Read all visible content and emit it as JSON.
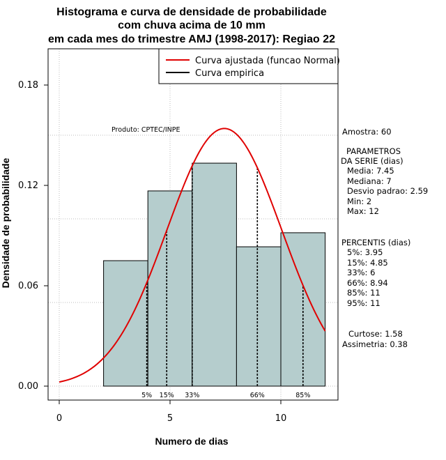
{
  "chart_data": {
    "type": "bar",
    "title": [
      "Histograma e curva de densidade de probabilidade",
      "com chuva acima de 10 mm",
      "em cada mes do trimestre AMJ (1998-2017): Regiao 22"
    ],
    "xlabel": "Numero de dias",
    "ylabel": "Densidade de probabilidade",
    "xlim": [
      -1,
      12.5
    ],
    "ylim": [
      -0.008,
      0.2
    ],
    "x_ticks": [
      0,
      5,
      10
    ],
    "y_ticks": [
      0.0,
      0.06,
      0.12,
      0.18
    ],
    "y_tick_labels": [
      "0.00",
      "0.06",
      "0.12",
      "0.18"
    ],
    "bins": [
      {
        "from": 2,
        "to": 4,
        "value": 0.075
      },
      {
        "from": 4,
        "to": 6,
        "value": 0.1167
      },
      {
        "from": 6,
        "to": 8,
        "value": 0.1333
      },
      {
        "from": 8,
        "to": 10,
        "value": 0.0833
      },
      {
        "from": 10,
        "to": 12,
        "value": 0.0917
      }
    ],
    "bar_color": "#b5cdcd",
    "grid": true,
    "fitted_curve": {
      "name": "Curva ajustada (funcao Normal)",
      "color": "#e00000",
      "mean": 7.45,
      "sd": 2.59,
      "x_from": 0,
      "x_to": 12
    },
    "empirical_curve": {
      "name": "Curva empirica",
      "color": "#000000"
    },
    "legend": "top-right",
    "percentile_lines": [
      {
        "label": "5%",
        "x": 3.95
      },
      {
        "label": "15%",
        "x": 4.85
      },
      {
        "label": "33%",
        "x": 6
      },
      {
        "label": "66%",
        "x": 8.94
      },
      {
        "label": "85%",
        "x": 11
      }
    ],
    "annotation": "Produto: CPTEC/INPE"
  },
  "stats_panel": {
    "amostra": "Amostra: 60",
    "param_title_1": "PARAMETROS",
    "param_title_2": "DA SERIE (dias)",
    "media": "Media: 7.45",
    "mediana": "Mediana: 7",
    "desvio": "Desvio padrao: 2.59",
    "min": "Min: 2",
    "max": "Max: 12",
    "perc_title": "PERCENTIS (dias)",
    "p5": "5%: 3.95",
    "p15": "15%: 4.85",
    "p33": "33%: 6",
    "p66": "66%: 8.94",
    "p85": "85%: 11",
    "p95": "95%: 11",
    "curtose": "Curtose: 1.58",
    "assimetria": "Assimetria: 0.38"
  }
}
